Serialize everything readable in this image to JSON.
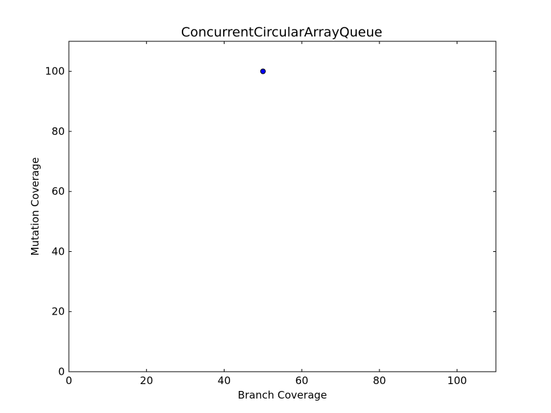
{
  "chart_data": {
    "type": "scatter",
    "title": "ConcurrentCircularArrayQueue",
    "xlabel": "Branch Coverage",
    "ylabel": "Mutation Coverage",
    "xlim": [
      0,
      110
    ],
    "ylim": [
      0,
      110
    ],
    "x_ticks": [
      0,
      20,
      40,
      60,
      80,
      100
    ],
    "y_ticks": [
      0,
      20,
      40,
      60,
      80,
      100
    ],
    "grid": false,
    "series": [
      {
        "points": [
          {
            "x": 50,
            "y": 100
          }
        ]
      }
    ],
    "colors": {
      "marker_fill": "#0000ff",
      "marker_edge": "#000000",
      "axes": "#000000",
      "background": "#ffffff"
    }
  }
}
